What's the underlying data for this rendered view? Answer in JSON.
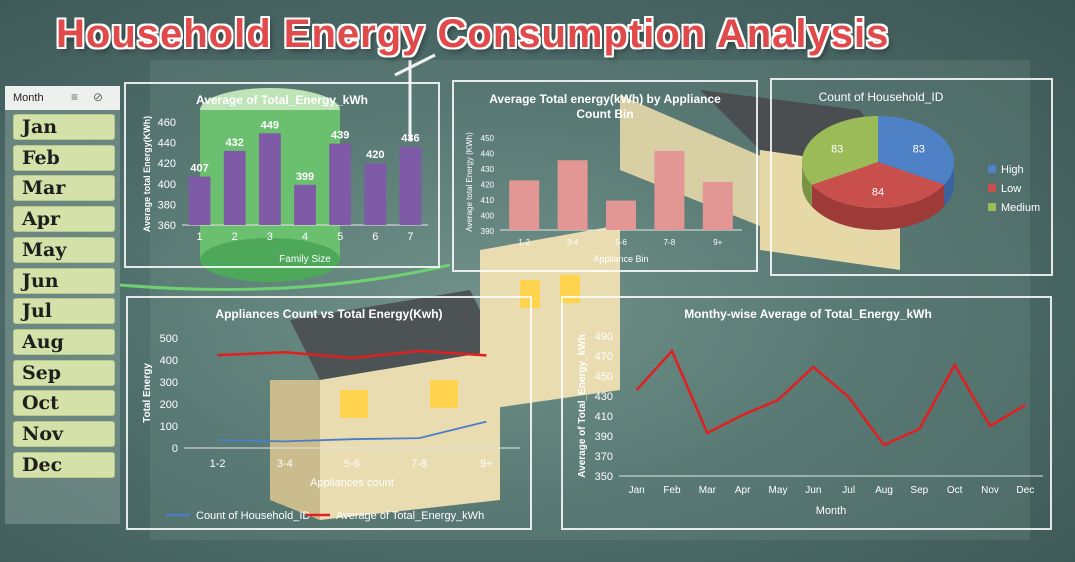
{
  "title": "Household Energy Consumption Analysis",
  "slicer": {
    "header": "Month",
    "months": [
      "Jan",
      "Feb",
      "Mar",
      "Apr",
      "May",
      "Jun",
      "Jul",
      "Aug",
      "Sep",
      "Oct",
      "Nov",
      "Dec"
    ]
  },
  "colors": {
    "purple": "#7f5aa6",
    "pink": "#e39795",
    "blue": "#4a7ec8",
    "red": "#e02020",
    "pie_high": "#4f81c7",
    "pie_low": "#c94f4c",
    "pie_medium": "#9bbb59"
  },
  "chart_data": [
    {
      "id": "family",
      "type": "bar",
      "title": "Average of Total_Energy_kWh",
      "xlabel": "Family Size",
      "ylabel": "Average total Energy(KWh)",
      "categories": [
        "1",
        "2",
        "3",
        "4",
        "5",
        "6",
        "7"
      ],
      "values": [
        407,
        432,
        449,
        399,
        439,
        420,
        436
      ],
      "ylim": [
        360,
        460
      ],
      "yticks": [
        360,
        380,
        400,
        420,
        440,
        460
      ]
    },
    {
      "id": "appbin",
      "type": "bar",
      "title": "Average Total energy(kWh) by Appliance Count Bin",
      "title_lines": [
        "Average Total energy(kWh) by Appliance",
        "Count Bin"
      ],
      "xlabel": "Appliance Bin",
      "ylabel": "Average total Energy (KWh)",
      "categories": [
        "1-2",
        "3-4",
        "5-6",
        "7-8",
        "9+"
      ],
      "values": [
        422,
        435,
        409,
        441,
        421
      ],
      "ylim": [
        390,
        450
      ],
      "yticks": [
        390,
        400,
        410,
        420,
        430,
        440,
        450
      ]
    },
    {
      "id": "pie",
      "type": "pie",
      "title": "Count of Household_ID",
      "labels": [
        "High",
        "Low",
        "Medium"
      ],
      "values": [
        83,
        84,
        83
      ],
      "legend": "right"
    },
    {
      "id": "appcount",
      "type": "line",
      "title": "Appliances Count vs Total Energy(Kwh)",
      "xlabel": "Appliances count",
      "ylabel": "Total Energy",
      "categories": [
        "1-2",
        "3-4",
        "5-6",
        "7-8",
        "9+"
      ],
      "series": [
        {
          "name": "Count of Household_ID",
          "values": [
            35,
            30,
            40,
            45,
            120
          ]
        },
        {
          "name": "Average of Total_Energy_kWh",
          "values": [
            422,
            435,
            409,
            441,
            421
          ]
        }
      ],
      "ylim": [
        0,
        500
      ],
      "yticks": [
        0,
        100,
        200,
        300,
        400,
        500
      ],
      "legend": "bottom"
    },
    {
      "id": "monthly",
      "type": "line",
      "title": "Monthy-wise Average of Total_Energy_kWh",
      "xlabel": "Month",
      "ylabel": "Average of Total_Energy_kWh",
      "categories": [
        "Jan",
        "Feb",
        "Mar",
        "Apr",
        "May",
        "Jun",
        "Jul",
        "Aug",
        "Sep",
        "Oct",
        "Nov",
        "Dec"
      ],
      "values": [
        436,
        475,
        393,
        411,
        426,
        459,
        429,
        381,
        397,
        461,
        400,
        421
      ],
      "ylim": [
        350,
        490
      ],
      "yticks": [
        350,
        370,
        390,
        410,
        430,
        450,
        470,
        490
      ]
    }
  ]
}
